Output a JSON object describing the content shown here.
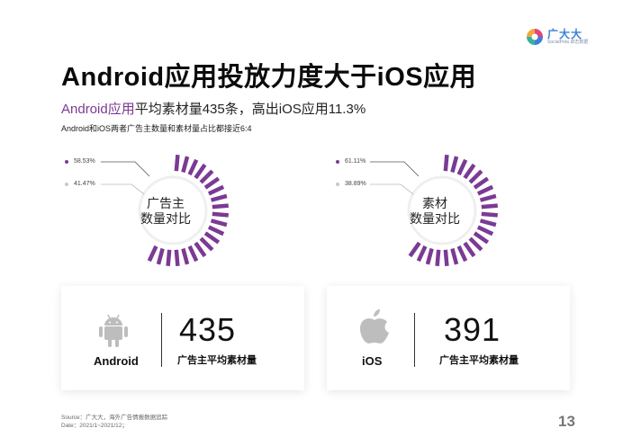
{
  "brand": {
    "name_cn": "广大大",
    "name_en": "SocialPeta 卓志数据"
  },
  "title": "Android应用投放力度大于iOS应用",
  "subtitle": {
    "highlight": "Android应用",
    "rest": "平均素材量435条，高出iOS应用11.3%"
  },
  "note": "Android和iOS两者广告主数量和素材量占比都接近6:4",
  "colors": {
    "android": "#7b3a93",
    "ios": "#c8c8c8",
    "accent": "#7b3a93"
  },
  "chart_data": [
    {
      "type": "pie",
      "title": "广告主数量对比",
      "center_label": [
        "广告主",
        "数量对比"
      ],
      "slices": [
        {
          "label": "58.53%",
          "value": 58.53,
          "color": "#7b3a93"
        },
        {
          "label": "41.47%",
          "value": 41.47,
          "color": "#c8c8c8"
        }
      ]
    },
    {
      "type": "pie",
      "title": "素材数量对比",
      "center_label": [
        "素材",
        "数量对比"
      ],
      "slices": [
        {
          "label": "61.11%",
          "value": 61.11,
          "color": "#7b3a93"
        },
        {
          "label": "38.89%",
          "value": 38.89,
          "color": "#c8c8c8"
        }
      ]
    }
  ],
  "cards": [
    {
      "platform": "Android",
      "icon": "android-icon",
      "value": "435",
      "label": "广告主平均素材量"
    },
    {
      "platform": "iOS",
      "icon": "apple-icon",
      "value": "391",
      "label": "广告主平均素材量"
    }
  ],
  "footer": {
    "source": "Source：广大大，海外广告情报数据追踪",
    "date": "Date：2021/1~2021/12；"
  },
  "page_number": "13"
}
